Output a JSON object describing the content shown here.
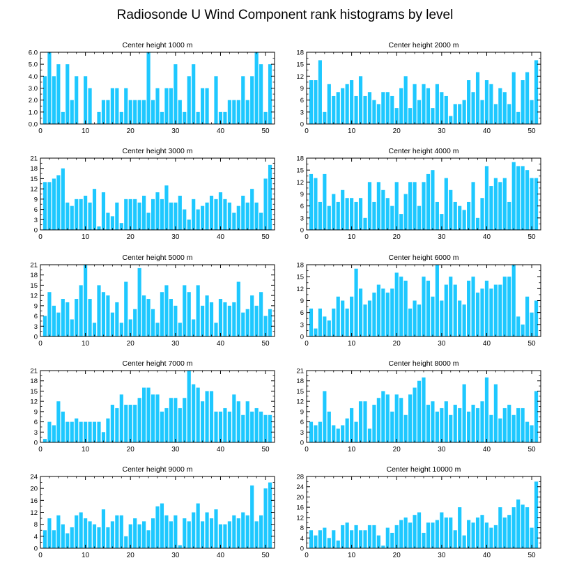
{
  "figure_title": "Radiosonde U Wind Component rank histograms by level",
  "bar_color": "#1ec8ff",
  "axis_color": "#000000",
  "chart_data": [
    {
      "type": "bar",
      "title": "Center height 1000 m",
      "x": [
        1,
        2,
        3,
        4,
        5,
        6,
        7,
        8,
        9,
        10,
        11,
        12,
        13,
        14,
        15,
        16,
        17,
        18,
        19,
        20,
        21,
        22,
        23,
        24,
        25,
        26,
        27,
        28,
        29,
        30,
        31,
        32,
        33,
        34,
        35,
        36,
        37,
        38,
        39,
        40,
        41,
        42,
        43,
        44,
        45,
        46,
        47,
        48,
        49,
        50,
        51
      ],
      "values": [
        4,
        6,
        4,
        5,
        1,
        5,
        2,
        4,
        0,
        4,
        3,
        0,
        1,
        2,
        2,
        3,
        3,
        1,
        3,
        2,
        2,
        2,
        2,
        6,
        2,
        3,
        1,
        3,
        3,
        5,
        2,
        1,
        4,
        5,
        1,
        3,
        3,
        0,
        4,
        1,
        1,
        2,
        2,
        2,
        4,
        2,
        4,
        6,
        5,
        1,
        5
      ],
      "xlim": [
        0,
        52
      ],
      "ylim": [
        0,
        6
      ],
      "xticks": [
        0,
        10,
        20,
        30,
        40,
        50
      ],
      "yticks": [
        "0.0",
        "1.0",
        "2.0",
        "3.0",
        "4.0",
        "5.0",
        "6.0"
      ],
      "ytick_values": [
        0,
        1,
        2,
        3,
        4,
        5,
        6
      ],
      "xlabel": "",
      "ylabel": ""
    },
    {
      "type": "bar",
      "title": "Center height 2000 m",
      "x": [
        1,
        2,
        3,
        4,
        5,
        6,
        7,
        8,
        9,
        10,
        11,
        12,
        13,
        14,
        15,
        16,
        17,
        18,
        19,
        20,
        21,
        22,
        23,
        24,
        25,
        26,
        27,
        28,
        29,
        30,
        31,
        32,
        33,
        34,
        35,
        36,
        37,
        38,
        39,
        40,
        41,
        42,
        43,
        44,
        45,
        46,
        47,
        48,
        49,
        50,
        51
      ],
      "values": [
        11,
        11,
        16,
        3,
        10,
        7,
        8,
        9,
        10,
        11,
        7,
        12,
        7,
        8,
        6,
        5,
        8,
        8,
        7,
        4,
        9,
        12,
        4,
        10,
        6,
        10,
        9,
        4,
        10,
        8,
        7,
        2,
        5,
        5,
        6,
        11,
        8,
        13,
        6,
        11,
        10,
        5,
        9,
        8,
        5,
        13,
        3,
        11,
        13,
        6,
        16
      ],
      "xlim": [
        0,
        52
      ],
      "ylim": [
        0,
        18
      ],
      "xticks": [
        0,
        10,
        20,
        30,
        40,
        50
      ],
      "yticks": [
        "0",
        "3",
        "6",
        "9",
        "12",
        "15",
        "18"
      ],
      "ytick_values": [
        0,
        3,
        6,
        9,
        12,
        15,
        18
      ],
      "xlabel": "",
      "ylabel": ""
    },
    {
      "type": "bar",
      "title": "Center height 3000 m",
      "x": [
        1,
        2,
        3,
        4,
        5,
        6,
        7,
        8,
        9,
        10,
        11,
        12,
        13,
        14,
        15,
        16,
        17,
        18,
        19,
        20,
        21,
        22,
        23,
        24,
        25,
        26,
        27,
        28,
        29,
        30,
        31,
        32,
        33,
        34,
        35,
        36,
        37,
        38,
        39,
        40,
        41,
        42,
        43,
        44,
        45,
        46,
        47,
        48,
        49,
        50,
        51
      ],
      "values": [
        14,
        14,
        15,
        16,
        18,
        8,
        7,
        9,
        9,
        10,
        8,
        12,
        1,
        11,
        5,
        4,
        8,
        2,
        9,
        9,
        9,
        8,
        10,
        5,
        9,
        11,
        9,
        13,
        8,
        8,
        10,
        6,
        3,
        9,
        6,
        7,
        8,
        10,
        9,
        11,
        9,
        8,
        5,
        7,
        10,
        8,
        12,
        8,
        5,
        15,
        19
      ],
      "xlim": [
        0,
        52
      ],
      "ylim": [
        0,
        21
      ],
      "xticks": [
        0,
        10,
        20,
        30,
        40,
        50
      ],
      "yticks": [
        "0",
        "3",
        "6",
        "9",
        "12",
        "15",
        "18",
        "21"
      ],
      "ytick_values": [
        0,
        3,
        6,
        9,
        12,
        15,
        18,
        21
      ],
      "xlabel": "",
      "ylabel": ""
    },
    {
      "type": "bar",
      "title": "Center height 4000 m",
      "x": [
        1,
        2,
        3,
        4,
        5,
        6,
        7,
        8,
        9,
        10,
        11,
        12,
        13,
        14,
        15,
        16,
        17,
        18,
        19,
        20,
        21,
        22,
        23,
        24,
        25,
        26,
        27,
        28,
        29,
        30,
        31,
        32,
        33,
        34,
        35,
        36,
        37,
        38,
        39,
        40,
        41,
        42,
        43,
        44,
        45,
        46,
        47,
        48,
        49,
        50,
        51
      ],
      "values": [
        14,
        13,
        7,
        14,
        6,
        9,
        7,
        10,
        8,
        8,
        7,
        8,
        3,
        12,
        7,
        12,
        10,
        8,
        6,
        12,
        4,
        9,
        12,
        12,
        6,
        12,
        14,
        15,
        7,
        4,
        13,
        10,
        7,
        6,
        5,
        7,
        12,
        3,
        8,
        16,
        11,
        13,
        12,
        13,
        7,
        17,
        16,
        16,
        15,
        13,
        13
      ],
      "xlim": [
        0,
        52
      ],
      "ylim": [
        0,
        18
      ],
      "xticks": [
        0,
        10,
        20,
        30,
        40,
        50
      ],
      "yticks": [
        "0",
        "3",
        "6",
        "9",
        "12",
        "15",
        "18"
      ],
      "ytick_values": [
        0,
        3,
        6,
        9,
        12,
        15,
        18
      ],
      "xlabel": "",
      "ylabel": ""
    },
    {
      "type": "bar",
      "title": "Center height 5000 m",
      "x": [
        1,
        2,
        3,
        4,
        5,
        6,
        7,
        8,
        9,
        10,
        11,
        12,
        13,
        14,
        15,
        16,
        17,
        18,
        19,
        20,
        21,
        22,
        23,
        24,
        25,
        26,
        27,
        28,
        29,
        30,
        31,
        32,
        33,
        34,
        35,
        36,
        37,
        38,
        39,
        40,
        41,
        42,
        43,
        44,
        45,
        46,
        47,
        48,
        49,
        50,
        51
      ],
      "values": [
        6,
        13,
        9,
        7,
        11,
        10,
        5,
        11,
        15,
        21,
        11,
        4,
        15,
        13,
        12,
        7,
        10,
        4,
        16,
        5,
        8,
        20,
        12,
        11,
        8,
        4,
        13,
        15,
        11,
        9,
        4,
        15,
        13,
        5,
        15,
        9,
        12,
        10,
        4,
        11,
        10,
        9,
        10,
        16,
        7,
        8,
        12,
        9,
        13,
        6,
        8
      ],
      "xlim": [
        0,
        52
      ],
      "ylim": [
        0,
        21
      ],
      "xticks": [
        0,
        10,
        20,
        30,
        40,
        50
      ],
      "yticks": [
        "0",
        "3",
        "6",
        "9",
        "12",
        "15",
        "18",
        "21"
      ],
      "ytick_values": [
        0,
        3,
        6,
        9,
        12,
        15,
        18,
        21
      ],
      "xlabel": "",
      "ylabel": ""
    },
    {
      "type": "bar",
      "title": "Center height 6000 m",
      "x": [
        1,
        2,
        3,
        4,
        5,
        6,
        7,
        8,
        9,
        10,
        11,
        12,
        13,
        14,
        15,
        16,
        17,
        18,
        19,
        20,
        21,
        22,
        23,
        24,
        25,
        26,
        27,
        28,
        29,
        30,
        31,
        32,
        33,
        34,
        35,
        36,
        37,
        38,
        39,
        40,
        41,
        42,
        43,
        44,
        45,
        46,
        47,
        48,
        49,
        50,
        51
      ],
      "values": [
        7,
        2,
        7,
        5,
        4,
        7,
        10,
        9,
        7,
        10,
        17,
        12,
        8,
        9,
        11,
        13,
        12,
        11,
        12,
        16,
        15,
        14,
        7,
        9,
        8,
        15,
        14,
        10,
        18,
        9,
        13,
        15,
        13,
        9,
        8,
        14,
        15,
        11,
        12,
        14,
        12,
        13,
        13,
        15,
        15,
        18,
        5,
        3,
        10,
        6,
        9
      ],
      "xlim": [
        0,
        52
      ],
      "ylim": [
        0,
        18
      ],
      "xticks": [
        0,
        10,
        20,
        30,
        40,
        50
      ],
      "yticks": [
        "0",
        "3",
        "6",
        "9",
        "12",
        "15",
        "18"
      ],
      "ytick_values": [
        0,
        3,
        6,
        9,
        12,
        15,
        18
      ],
      "xlabel": "",
      "ylabel": ""
    },
    {
      "type": "bar",
      "title": "Center height 7000 m",
      "x": [
        1,
        2,
        3,
        4,
        5,
        6,
        7,
        8,
        9,
        10,
        11,
        12,
        13,
        14,
        15,
        16,
        17,
        18,
        19,
        20,
        21,
        22,
        23,
        24,
        25,
        26,
        27,
        28,
        29,
        30,
        31,
        32,
        33,
        34,
        35,
        36,
        37,
        38,
        39,
        40,
        41,
        42,
        43,
        44,
        45,
        46,
        47,
        48,
        49,
        50,
        51
      ],
      "values": [
        1,
        6,
        5,
        12,
        9,
        6,
        6,
        7,
        6,
        6,
        6,
        6,
        6,
        3,
        7,
        11,
        10,
        14,
        11,
        11,
        11,
        13,
        16,
        16,
        14,
        14,
        9,
        10,
        13,
        13,
        10,
        13,
        21,
        17,
        16,
        12,
        15,
        15,
        9,
        9,
        10,
        9,
        14,
        12,
        8,
        12,
        9,
        10,
        9,
        8,
        8
      ],
      "xlim": [
        0,
        52
      ],
      "ylim": [
        0,
        21
      ],
      "xticks": [
        0,
        10,
        20,
        30,
        40,
        50
      ],
      "yticks": [
        "0",
        "3",
        "6",
        "9",
        "12",
        "15",
        "18",
        "21"
      ],
      "ytick_values": [
        0,
        3,
        6,
        9,
        12,
        15,
        18,
        21
      ],
      "xlabel": "",
      "ylabel": ""
    },
    {
      "type": "bar",
      "title": "Center height 8000 m",
      "x": [
        1,
        2,
        3,
        4,
        5,
        6,
        7,
        8,
        9,
        10,
        11,
        12,
        13,
        14,
        15,
        16,
        17,
        18,
        19,
        20,
        21,
        22,
        23,
        24,
        25,
        26,
        27,
        28,
        29,
        30,
        31,
        32,
        33,
        34,
        35,
        36,
        37,
        38,
        39,
        40,
        41,
        42,
        43,
        44,
        45,
        46,
        47,
        48,
        49,
        50,
        51
      ],
      "values": [
        6,
        5,
        6,
        15,
        9,
        5,
        4,
        5,
        7,
        10,
        6,
        12,
        12,
        4,
        11,
        13,
        15,
        14,
        9,
        14,
        13,
        8,
        14,
        16,
        18,
        19,
        11,
        12,
        9,
        10,
        12,
        8,
        11,
        10,
        17,
        9,
        11,
        10,
        12,
        19,
        8,
        17,
        7,
        10,
        11,
        8,
        10,
        10,
        6,
        5,
        15
      ],
      "xlim": [
        0,
        52
      ],
      "ylim": [
        0,
        21
      ],
      "xticks": [
        0,
        10,
        20,
        30,
        40,
        50
      ],
      "yticks": [
        "0",
        "3",
        "6",
        "9",
        "12",
        "15",
        "18",
        "21"
      ],
      "ytick_values": [
        0,
        3,
        6,
        9,
        12,
        15,
        18,
        21
      ],
      "xlabel": "",
      "ylabel": ""
    },
    {
      "type": "bar",
      "title": "Center height 9000 m",
      "x": [
        1,
        2,
        3,
        4,
        5,
        6,
        7,
        8,
        9,
        10,
        11,
        12,
        13,
        14,
        15,
        16,
        17,
        18,
        19,
        20,
        21,
        22,
        23,
        24,
        25,
        26,
        27,
        28,
        29,
        30,
        31,
        32,
        33,
        34,
        35,
        36,
        37,
        38,
        39,
        40,
        41,
        42,
        43,
        44,
        45,
        46,
        47,
        48,
        49,
        50,
        51
      ],
      "values": [
        6,
        10,
        6,
        11,
        8,
        5,
        7,
        11,
        12,
        10,
        9,
        8,
        7,
        13,
        7,
        9,
        11,
        11,
        4,
        8,
        10,
        8,
        9,
        6,
        10,
        14,
        15,
        11,
        9,
        11,
        1,
        10,
        9,
        12,
        15,
        9,
        12,
        10,
        13,
        8,
        8,
        9,
        11,
        10,
        12,
        11,
        21,
        9,
        11,
        20,
        22
      ],
      "xlim": [
        0,
        52
      ],
      "ylim": [
        0,
        24
      ],
      "xticks": [
        0,
        10,
        20,
        30,
        40,
        50
      ],
      "yticks": [
        "0",
        "4",
        "8",
        "12",
        "16",
        "20",
        "24"
      ],
      "ytick_values": [
        0,
        4,
        8,
        12,
        16,
        20,
        24
      ],
      "xlabel": "",
      "ylabel": ""
    },
    {
      "type": "bar",
      "title": "Center height 10000 m",
      "x": [
        1,
        2,
        3,
        4,
        5,
        6,
        7,
        8,
        9,
        10,
        11,
        12,
        13,
        14,
        15,
        16,
        17,
        18,
        19,
        20,
        21,
        22,
        23,
        24,
        25,
        26,
        27,
        28,
        29,
        30,
        31,
        32,
        33,
        34,
        35,
        36,
        37,
        38,
        39,
        40,
        41,
        42,
        43,
        44,
        45,
        46,
        47,
        48,
        49,
        50,
        51
      ],
      "values": [
        7,
        5,
        7,
        8,
        4,
        7,
        3,
        9,
        10,
        7,
        9,
        7,
        7,
        9,
        9,
        5,
        1,
        8,
        6,
        9,
        11,
        12,
        10,
        13,
        14,
        6,
        10,
        10,
        11,
        14,
        12,
        12,
        7,
        16,
        5,
        11,
        10,
        12,
        13,
        10,
        8,
        9,
        16,
        12,
        13,
        16,
        19,
        17,
        16,
        8,
        26
      ],
      "xlim": [
        0,
        52
      ],
      "ylim": [
        0,
        28
      ],
      "xticks": [
        0,
        10,
        20,
        30,
        40,
        50
      ],
      "yticks": [
        "0",
        "4",
        "8",
        "12",
        "16",
        "20",
        "24",
        "28"
      ],
      "ytick_values": [
        0,
        4,
        8,
        12,
        16,
        20,
        24,
        28
      ],
      "xlabel": "",
      "ylabel": ""
    }
  ]
}
